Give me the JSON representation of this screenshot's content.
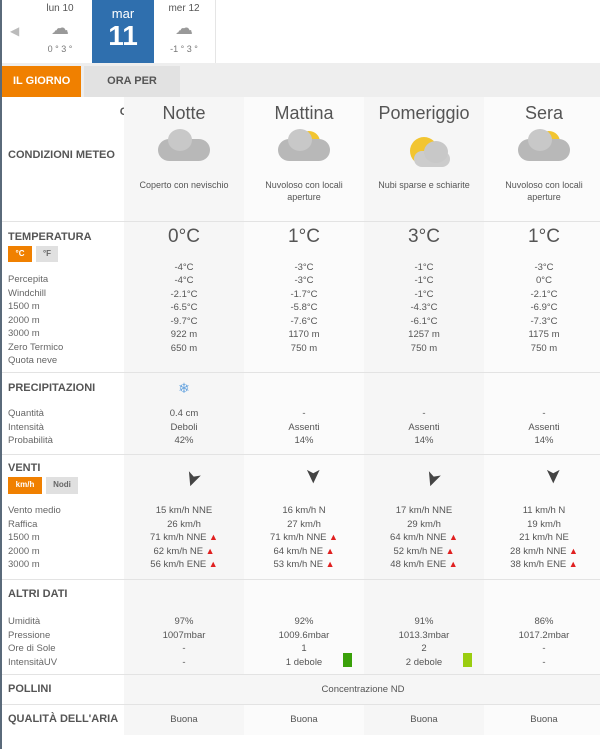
{
  "strip": {
    "prev_icon": "chevron-left-icon",
    "days": [
      {
        "name": "lun 10",
        "temps": "0 ° 3 °",
        "icon": "cloud-snow-icon"
      },
      {
        "name": "mar",
        "num": "11"
      },
      {
        "name": "mer 12",
        "temps": "-1 ° 3 °",
        "icon": "cloud-icon"
      }
    ]
  },
  "tabs": {
    "day": "IL GIORNO",
    "hourly": "ORA PER ORA"
  },
  "columns": [
    "Notte",
    "Mattina",
    "Pomeriggio",
    "Sera"
  ],
  "conditions": {
    "label": "CONDIZIONI METEO",
    "items": [
      {
        "desc": "Coperto con nevischio",
        "icon": "cloud-sleet-icon"
      },
      {
        "desc": "Nuvoloso con locali aperture",
        "icon": "cloud-sun-icon"
      },
      {
        "desc": "Nubi sparse e schiarite",
        "icon": "sun-cloud-icon"
      },
      {
        "desc": "Nuvoloso con locali aperture",
        "icon": "cloud-sun-icon"
      }
    ]
  },
  "temperature": {
    "label": "TEMPERATURA",
    "unit_c": "°C",
    "unit_f": "°F",
    "rows": [
      "Percepita",
      "Windchill",
      "1500 m",
      "2000 m",
      "3000 m",
      "Zero Termico",
      "Quota neve"
    ],
    "values": [
      {
        "main": "0°C",
        "rows": [
          "-4°C",
          "-4°C",
          "-2.1°C",
          "-6.5°C",
          "-9.7°C",
          "922 m",
          "650 m"
        ]
      },
      {
        "main": "1°C",
        "rows": [
          "-3°C",
          "-3°C",
          "-1.7°C",
          "-5.8°C",
          "-7.6°C",
          "1170 m",
          "750 m"
        ]
      },
      {
        "main": "3°C",
        "rows": [
          "-1°C",
          "-1°C",
          "-1°C",
          "-4.3°C",
          "-6.1°C",
          "1257 m",
          "750 m"
        ]
      },
      {
        "main": "1°C",
        "rows": [
          "-3°C",
          "0°C",
          "-2.1°C",
          "-6.9°C",
          "-7.3°C",
          "1175 m",
          "750 m"
        ]
      }
    ]
  },
  "precipitation": {
    "label": "PRECIPITAZIONI",
    "rows": [
      "Quantità",
      "Intensità",
      "Probabilità"
    ],
    "values": [
      {
        "icon": "snowflake-icon",
        "rows": [
          "0.4 cm",
          "Deboli",
          "42%"
        ]
      },
      {
        "rows": [
          "-",
          "Assenti",
          "14%"
        ]
      },
      {
        "rows": [
          "-",
          "Assenti",
          "14%"
        ]
      },
      {
        "rows": [
          "-",
          "Assenti",
          "14%"
        ]
      }
    ]
  },
  "wind": {
    "label": "VENTI",
    "unit_kmh": "km/h",
    "unit_knots": "Nodi",
    "rows": [
      "Vento medio",
      "Raffica",
      "1500 m",
      "2000 m",
      "3000 m"
    ],
    "values": [
      {
        "dir": "NNE",
        "rows": [
          "15 km/h  NNE",
          "26 km/h",
          "71 km/h NNE",
          "62 km/h NE",
          "56 km/h ENE"
        ],
        "warn": [
          false,
          false,
          true,
          true,
          true
        ]
      },
      {
        "dir": "N",
        "rows": [
          "16 km/h N",
          "27 km/h",
          "71 km/h NNE",
          "64 km/h NE",
          "53 km/h NE"
        ],
        "warn": [
          false,
          false,
          true,
          true,
          true
        ]
      },
      {
        "dir": "NNE",
        "rows": [
          "17 km/h NNE",
          "29 km/h",
          "64 km/h NNE",
          "52 km/h NE",
          "48 km/h ENE"
        ],
        "warn": [
          false,
          false,
          true,
          true,
          true
        ]
      },
      {
        "dir": "N",
        "rows": [
          "11 km/h N",
          "19 km/h",
          "21 km/h NE",
          "28 km/h NNE",
          "38 km/h ENE"
        ],
        "warn": [
          false,
          false,
          false,
          true,
          true
        ]
      }
    ]
  },
  "other": {
    "label": "ALTRI DATI",
    "rows": [
      "Umidità",
      "Pressione",
      "Ore di Sole",
      "IntensitàUV"
    ],
    "values": [
      {
        "rows": [
          "97%",
          "1007mbar",
          "-",
          "-"
        ]
      },
      {
        "rows": [
          "92%",
          "1009.6mbar",
          "1",
          "1 debole"
        ],
        "uv_color": "#3aa10a"
      },
      {
        "rows": [
          "91%",
          "1013.3mbar",
          "2",
          "2 debole"
        ],
        "uv_color": "#9acd10"
      },
      {
        "rows": [
          "86%",
          "1017.2mbar",
          "-",
          "-"
        ]
      }
    ]
  },
  "pollen": {
    "label": "POLLINI",
    "value": "Concentrazione ND"
  },
  "air": {
    "label": "QUALITÀ DELL'ARIA",
    "values": [
      "Buona",
      "Buona",
      "Buona",
      "Buona"
    ]
  },
  "colors": {
    "accent": "#f08000",
    "selected_day": "#2f6fae",
    "warning": "#e02020"
  }
}
